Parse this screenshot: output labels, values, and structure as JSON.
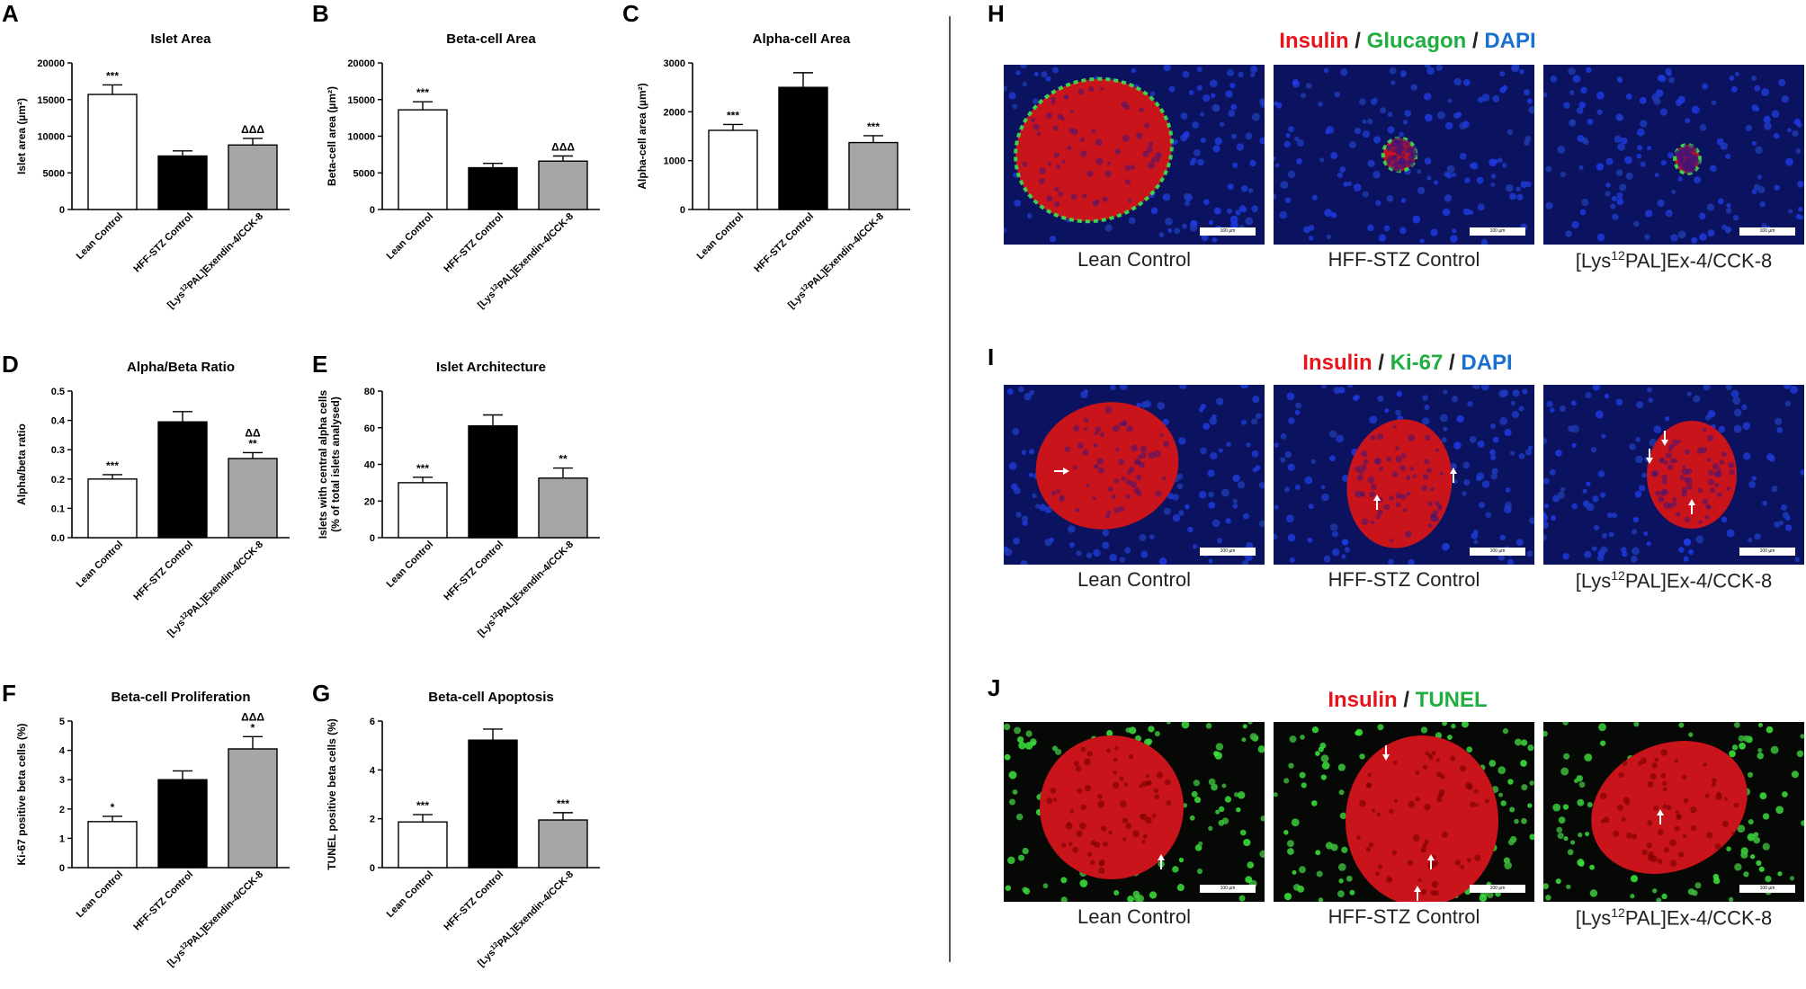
{
  "charts": [
    {
      "letter": "A",
      "title": "Islet Area",
      "ylabel": "Islet area (µm²)",
      "ylim": [
        0,
        20000
      ],
      "ticks": [
        "0",
        "5000",
        "10000",
        "15000",
        "20000"
      ]
    },
    {
      "letter": "B",
      "title": "Beta-cell Area",
      "ylabel": "Beta-cell area (µm²)",
      "ylim": [
        0,
        20000
      ],
      "ticks": [
        "0",
        "5000",
        "10000",
        "15000",
        "20000"
      ]
    },
    {
      "letter": "C",
      "title": "Alpha-cell Area",
      "ylabel": "Alpha-cell area (µm²)",
      "ylim": [
        0,
        3000
      ],
      "ticks": [
        "0",
        "1000",
        "2000",
        "3000"
      ]
    },
    {
      "letter": "D",
      "title": "Alpha/Beta Ratio",
      "ylabel": "Alpha/beta ratio",
      "ylim": [
        0,
        0.5
      ],
      "ticks": [
        "0.0",
        "0.1",
        "0.2",
        "0.3",
        "0.4",
        "0.5"
      ]
    },
    {
      "letter": "E",
      "title": "Islet Architecture",
      "ylabel": "Islets with central alpha cells",
      "ylabel2": "(% of total islets analysed)",
      "ylim": [
        0,
        80
      ],
      "ticks": [
        "0",
        "20",
        "40",
        "60",
        "80"
      ]
    },
    {
      "letter": "F",
      "title": "Beta-cell Proliferation",
      "ylabel": "Ki-67 positive beta cells (%)",
      "ylim": [
        0,
        5
      ],
      "ticks": [
        "0",
        "1",
        "2",
        "3",
        "4",
        "5"
      ]
    },
    {
      "letter": "G",
      "title": "Beta-cell Apoptosis",
      "ylabel": "TUNEL positive beta cells (%)",
      "ylim": [
        0,
        6
      ],
      "ticks": [
        "0",
        "2",
        "4",
        "6"
      ]
    }
  ],
  "categories": [
    "Lean Control",
    "HFF-STZ Control",
    "[Lys¹²PAL]Exendin-4/CCK-8"
  ],
  "chart_data": [
    {
      "type": "bar",
      "title": "Islet Area",
      "ylabel": "Islet area (µm²)",
      "categories": [
        "Lean Control",
        "HFF-STZ Control",
        "[Lys12PAL]Exendin-4/CCK-8"
      ],
      "values": [
        15700,
        7300,
        8800
      ],
      "errors": [
        1300,
        700,
        900
      ],
      "ylim": [
        0,
        20000
      ],
      "significance": [
        "***",
        "",
        "ΔΔΔ"
      ],
      "colors": [
        "#ffffff",
        "#000000",
        "#a6a6a6"
      ]
    },
    {
      "type": "bar",
      "title": "Beta-cell Area",
      "ylabel": "Beta-cell area (µm²)",
      "categories": [
        "Lean Control",
        "HFF-STZ Control",
        "[Lys12PAL]Exendin-4/CCK-8"
      ],
      "values": [
        13600,
        5700,
        6600
      ],
      "errors": [
        1100,
        600,
        700
      ],
      "ylim": [
        0,
        20000
      ],
      "significance": [
        "***",
        "",
        "ΔΔΔ"
      ],
      "colors": [
        "#ffffff",
        "#000000",
        "#a6a6a6"
      ]
    },
    {
      "type": "bar",
      "title": "Alpha-cell Area",
      "ylabel": "Alpha-cell area (µm²)",
      "categories": [
        "Lean Control",
        "HFF-STZ Control",
        "[Lys12PAL]Exendin-4/CCK-8"
      ],
      "values": [
        1620,
        2500,
        1370
      ],
      "errors": [
        120,
        300,
        140
      ],
      "ylim": [
        0,
        3000
      ],
      "significance": [
        "***",
        "",
        "***"
      ],
      "colors": [
        "#ffffff",
        "#000000",
        "#a6a6a6"
      ]
    },
    {
      "type": "bar",
      "title": "Alpha/Beta Ratio",
      "ylabel": "Alpha/beta ratio",
      "categories": [
        "Lean Control",
        "HFF-STZ Control",
        "[Lys12PAL]Exendin-4/CCK-8"
      ],
      "values": [
        0.2,
        0.395,
        0.27
      ],
      "errors": [
        0.015,
        0.035,
        0.02
      ],
      "ylim": [
        0,
        0.5
      ],
      "significance": [
        "***",
        "",
        "**|ΔΔ"
      ],
      "colors": [
        "#ffffff",
        "#000000",
        "#a6a6a6"
      ]
    },
    {
      "type": "bar",
      "title": "Islet Architecture",
      "ylabel": "Islets with central alpha cells (% of total islets analysed)",
      "categories": [
        "Lean Control",
        "HFF-STZ Control",
        "[Lys12PAL]Exendin-4/CCK-8"
      ],
      "values": [
        30,
        61,
        32.5
      ],
      "errors": [
        3,
        6,
        5.5
      ],
      "ylim": [
        0,
        80
      ],
      "significance": [
        "***",
        "",
        "**"
      ],
      "colors": [
        "#ffffff",
        "#000000",
        "#a6a6a6"
      ]
    },
    {
      "type": "bar",
      "title": "Beta-cell Proliferation",
      "ylabel": "Ki-67 positive beta cells (%)",
      "categories": [
        "Lean Control",
        "HFF-STZ Control",
        "[Lys12PAL]Exendin-4/CCK-8"
      ],
      "values": [
        1.57,
        3.0,
        4.05
      ],
      "errors": [
        0.18,
        0.3,
        0.42
      ],
      "ylim": [
        0,
        5
      ],
      "significance": [
        "*",
        "",
        "*|ΔΔΔ"
      ],
      "colors": [
        "#ffffff",
        "#000000",
        "#a6a6a6"
      ]
    },
    {
      "type": "bar",
      "title": "Beta-cell Apoptosis",
      "ylabel": "TUNEL positive beta cells (%)",
      "categories": [
        "Lean Control",
        "HFF-STZ Control",
        "[Lys12PAL]Exendin-4/CCK-8"
      ],
      "values": [
        1.87,
        5.22,
        1.95
      ],
      "errors": [
        0.3,
        0.45,
        0.3
      ],
      "ylim": [
        0,
        6
      ],
      "significance": [
        "***",
        "",
        "***"
      ],
      "colors": [
        "#ffffff",
        "#000000",
        "#a6a6a6"
      ]
    }
  ],
  "micrographs": {
    "rows": [
      {
        "letter": "H",
        "stain": [
          {
            "text": "Insulin",
            "color": "#e8141c"
          },
          {
            "text": " / ",
            "color": "#222222"
          },
          {
            "text": "Glucagon",
            "color": "#1fae3f"
          },
          {
            "text": " / ",
            "color": "#222222"
          },
          {
            "text": "DAPI",
            "color": "#1a6fd1"
          }
        ],
        "background": "navy"
      },
      {
        "letter": "I",
        "stain": [
          {
            "text": "Insulin",
            "color": "#e8141c"
          },
          {
            "text": " / ",
            "color": "#222222"
          },
          {
            "text": "Ki-67",
            "color": "#1fae3f"
          },
          {
            "text": " / ",
            "color": "#222222"
          },
          {
            "text": "DAPI",
            "color": "#1a6fd1"
          }
        ],
        "background": "navy"
      },
      {
        "letter": "J",
        "stain": [
          {
            "text": "Insulin",
            "color": "#e8141c"
          },
          {
            "text": " / ",
            "color": "#222222"
          },
          {
            "text": "TUNEL",
            "color": "#1fae3f"
          }
        ],
        "background": "black"
      }
    ],
    "labels": {
      "lean": "Lean Control",
      "hff": "HFF-STZ Control",
      "treat_pre": "[Lys",
      "treat_sup": "12",
      "treat_post": "PAL]Ex-4/CCK-8"
    },
    "scale_bar": "100 µm"
  }
}
